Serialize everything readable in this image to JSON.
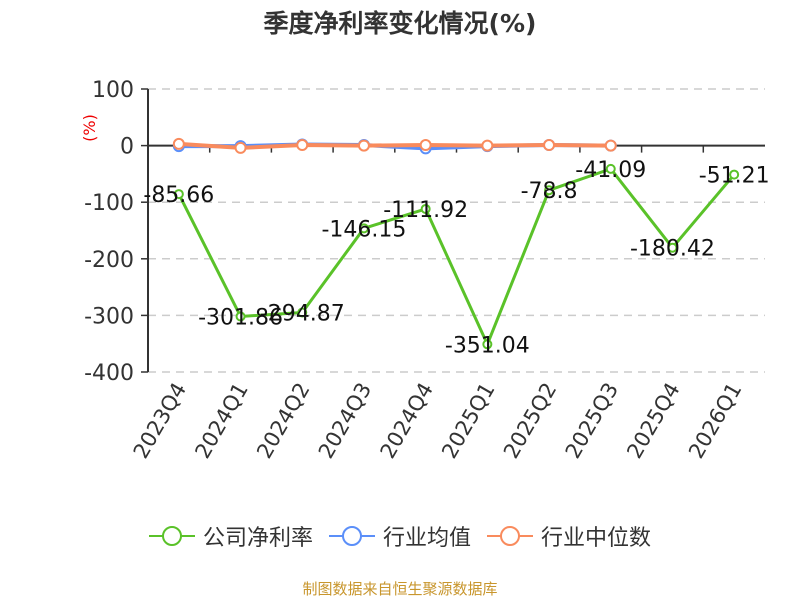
{
  "chart_data": {
    "type": "line",
    "title": "季度净利率变化情况(%)",
    "ylabel": "(%)",
    "xlabel": "",
    "ylim": [
      -400,
      100
    ],
    "yticks": [
      100,
      0,
      -100,
      -200,
      -300,
      -400
    ],
    "grid": true,
    "legend_position": "bottom",
    "categories": [
      "2023Q4",
      "2024Q1",
      "2024Q2",
      "2024Q3",
      "2024Q4",
      "2025Q1",
      "2025Q2",
      "2025Q3",
      "2025Q4",
      "2026Q1"
    ],
    "series": [
      {
        "name": "公司净利率",
        "color": "#5ac229",
        "values": [
          -85.66,
          -301.86,
          -294.87,
          -146.15,
          -111.92,
          -351.04,
          -78.8,
          -41.09,
          -180.42,
          -51.21
        ],
        "labels": true
      },
      {
        "name": "行业均值",
        "color": "#5b8ff9",
        "values": [
          -1,
          -1,
          2,
          1,
          -5,
          -1,
          1,
          0,
          null,
          null
        ]
      },
      {
        "name": "行业中位数",
        "color": "#f98b5d",
        "values": [
          3,
          -4,
          1,
          0,
          1,
          0,
          1,
          0,
          null,
          null
        ]
      }
    ]
  },
  "title": "季度净利率变化情况(%)",
  "yaxis_unit": "(%)",
  "legend": [
    {
      "label": "公司净利率",
      "color": "#5ac229"
    },
    {
      "label": "行业均值",
      "color": "#5b8ff9"
    },
    {
      "label": "行业中位数",
      "color": "#f98b5d"
    }
  ],
  "source": "制图数据来自恒生聚源数据库"
}
